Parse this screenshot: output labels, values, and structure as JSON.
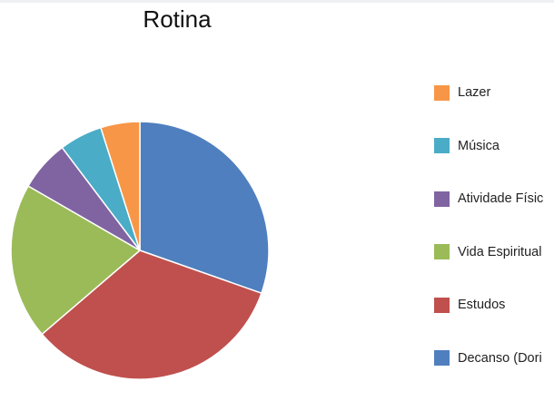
{
  "chart_data": {
    "type": "pie",
    "title": "Rotina",
    "start_angle_deg": 0,
    "direction": "clockwise",
    "legend_position": "right",
    "slices": [
      {
        "label": "Decanso (Dori",
        "value": 31,
        "color": "#4f7fbe"
      },
      {
        "label": "Estudos",
        "value": 34,
        "color": "#c0504d"
      },
      {
        "label": "Vida Espiritual",
        "value": 20,
        "color": "#9bbb59"
      },
      {
        "label": "Atividade Físic",
        "value": 6.5,
        "color": "#8064a2"
      },
      {
        "label": "Música",
        "value": 5.5,
        "color": "#4aacc6"
      },
      {
        "label": "Lazer",
        "value": 5,
        "color": "#f79646"
      }
    ],
    "legend_order": [
      5,
      4,
      3,
      2,
      1,
      0
    ]
  }
}
